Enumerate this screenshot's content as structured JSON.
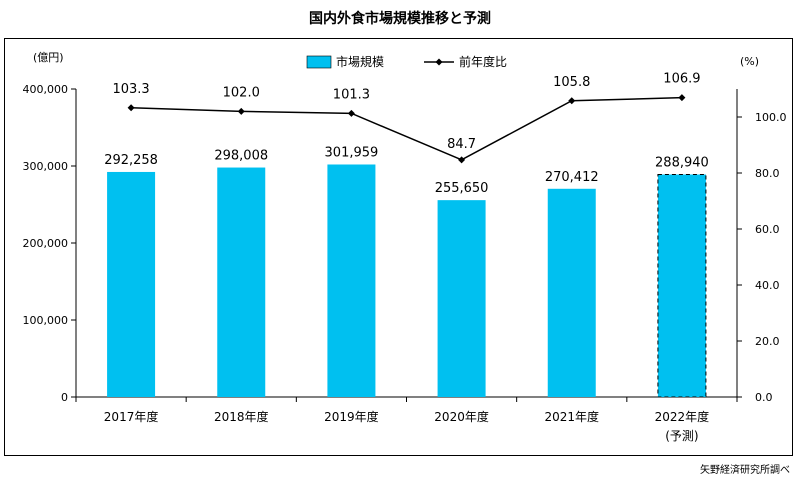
{
  "title": "国内外食市場規模推移と予測",
  "source": "矢野経済研究所調べ",
  "chart_data": {
    "type": "bar",
    "categories": [
      "2017年度",
      "2018年度",
      "2019年度",
      "2020年度",
      "2021年度",
      "2022年度"
    ],
    "category_sublabels": [
      "",
      "",
      "",
      "",
      "",
      "(予測)"
    ],
    "series": [
      {
        "name": "市場規模",
        "type": "bar",
        "axis": "left",
        "color": "#00c0f0",
        "values": [
          292258,
          298008,
          301959,
          255650,
          270412,
          288940
        ],
        "data_labels": [
          "292,258",
          "298,008",
          "301,959",
          "255,650",
          "270,412",
          "288,940"
        ],
        "forecast_index": 5
      },
      {
        "name": "前年度比",
        "type": "line",
        "axis": "right",
        "color": "#000000",
        "values": [
          103.3,
          102.0,
          101.3,
          84.7,
          105.8,
          106.9
        ],
        "data_labels": [
          "103.3",
          "102.0",
          "101.3",
          "84.7",
          "105.8",
          "106.9"
        ]
      }
    ],
    "y_left": {
      "unit": "(億円)",
      "ylim": [
        0,
        400000
      ],
      "ticks": [
        0,
        100000,
        200000,
        300000,
        400000
      ],
      "tick_labels": [
        "0",
        "100,000",
        "200,000",
        "300,000",
        "400,000"
      ]
    },
    "y_right": {
      "unit": "(%)",
      "ylim": [
        0,
        110
      ],
      "ticks": [
        0,
        20,
        40,
        60,
        80,
        100
      ],
      "tick_labels": [
        "0.0",
        "20.0",
        "40.0",
        "60.0",
        "80.0",
        "100.0"
      ]
    },
    "grid": false,
    "legend_position": "top-center"
  }
}
